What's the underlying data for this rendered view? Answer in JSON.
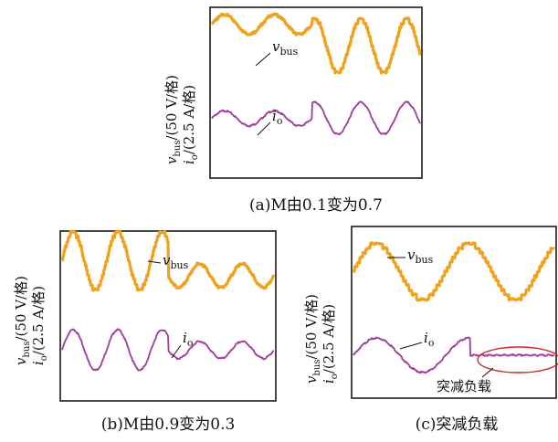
{
  "chart_data": [
    {
      "type": "line",
      "caption": "(a)M由0.1变为0.7",
      "ylabel_top": "vbus/(50 V/格)",
      "ylabel_bottom": "io/(2.5 A/格)",
      "ylabel_top_parts": {
        "sym": "v",
        "sub": "bus",
        "rest": "/(50 V/格)"
      },
      "ylabel_bottom_parts": {
        "sym": "i",
        "sub": "o",
        "rest": "/(2.5 A/格)"
      },
      "series": [
        {
          "name": "vbus",
          "label_sym": "v",
          "label_sub": "bus",
          "color": "#f0a21e",
          "segments": [
            {
              "x0": 0.0,
              "x1": 0.48,
              "amp": 0.45,
              "period": 0.24,
              "offset": 7.2
            },
            {
              "x0": 0.48,
              "x1": 1.0,
              "amp": 1.25,
              "period": 0.22,
              "offset": 6.2
            }
          ]
        },
        {
          "name": "io",
          "label_sym": "i",
          "label_sub": "o",
          "color": "#a23a9a",
          "segments": [
            {
              "x0": 0.0,
              "x1": 0.48,
              "amp": 0.35,
              "period": 0.24,
              "offset": 2.8
            },
            {
              "x0": 0.48,
              "x1": 1.0,
              "amp": 0.75,
              "period": 0.22,
              "offset": 2.8
            }
          ]
        }
      ]
    },
    {
      "type": "line",
      "caption": "(b)M由0.9变为0.3",
      "ylabel_top": "vbus/(50 V/格)",
      "ylabel_bottom": "io/(2.5 A/格)",
      "ylabel_top_parts": {
        "sym": "v",
        "sub": "bus",
        "rest": "/(50 V/格)"
      },
      "ylabel_bottom_parts": {
        "sym": "i",
        "sub": "o",
        "rest": "/(2.5 A/格)"
      },
      "series": [
        {
          "name": "vbus",
          "label_sym": "v",
          "label_sub": "bus",
          "color": "#f0a21e",
          "segments": [
            {
              "x0": 0.0,
              "x1": 0.5,
              "amp": 1.35,
              "period": 0.21,
              "offset": 6.6
            },
            {
              "x0": 0.5,
              "x1": 1.0,
              "amp": 0.55,
              "period": 0.2,
              "offset": 5.9
            }
          ]
        },
        {
          "name": "io",
          "label_sym": "i",
          "label_sub": "o",
          "color": "#a23a9a",
          "segments": [
            {
              "x0": 0.0,
              "x1": 0.5,
              "amp": 0.95,
              "period": 0.21,
              "offset": 2.4
            },
            {
              "x0": 0.5,
              "x1": 1.0,
              "amp": 0.4,
              "period": 0.2,
              "offset": 2.4
            }
          ]
        }
      ]
    },
    {
      "type": "line",
      "caption": "(c)突减负载",
      "annotation": "突减负载",
      "ylabel_top": "vbus/(50 V/格)",
      "ylabel_bottom": "io/(2.5 A/格)",
      "ylabel_top_parts": {
        "sym": "v",
        "sub": "bus",
        "rest": "/(50 V/格)"
      },
      "ylabel_bottom_parts": {
        "sym": "i",
        "sub": "o",
        "rest": "/(2.5 A/格)"
      },
      "series": [
        {
          "name": "vbus",
          "label_sym": "v",
          "label_sub": "bus",
          "color": "#f0a21e",
          "segments": [
            {
              "x0": 0.0,
              "x1": 1.0,
              "amp": 1.3,
              "period": 0.46,
              "offset": 5.9
            }
          ]
        },
        {
          "name": "io",
          "label_sym": "i",
          "label_sub": "o",
          "color": "#a23a9a",
          "segments": [
            {
              "x0": 0.0,
              "x1": 0.58,
              "amp": 0.8,
              "period": 0.46,
              "offset": 2.0
            },
            {
              "x0": 0.58,
              "x1": 1.0,
              "amp": 0.0,
              "period": 0.46,
              "offset": 2.0
            }
          ]
        }
      ]
    }
  ]
}
